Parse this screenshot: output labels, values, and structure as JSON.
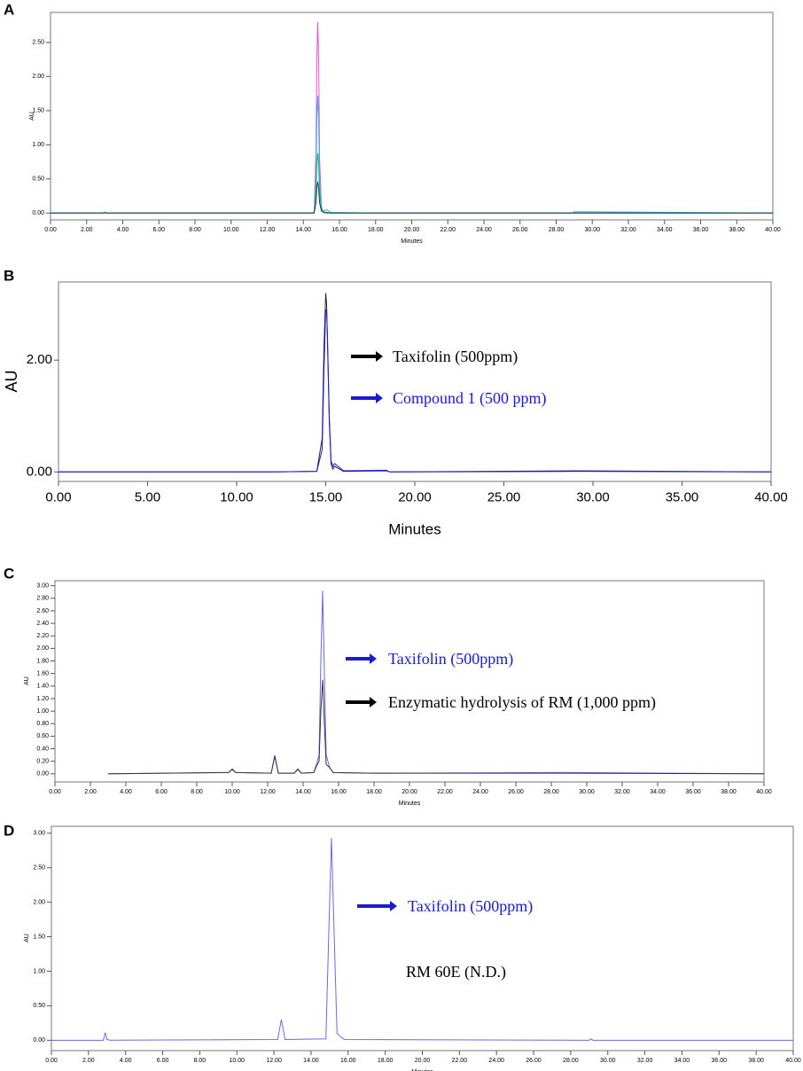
{
  "chart_data": [
    {
      "type": "line",
      "panel_label": "A",
      "xlabel": "Minutes",
      "ylabel": "AU",
      "xlim": [
        0,
        40
      ],
      "ylim": [
        -0.1,
        2.94
      ],
      "xticks": [
        {
          "value": 0,
          "label": "0.00"
        },
        {
          "value": 2,
          "label": "2.00"
        },
        {
          "value": 4,
          "label": "4.00"
        },
        {
          "value": 6,
          "label": "6.00"
        },
        {
          "value": 8,
          "label": "8.00"
        },
        {
          "value": 10,
          "label": "10.00"
        },
        {
          "value": 12,
          "label": "12.00"
        },
        {
          "value": 14,
          "label": "14.00"
        },
        {
          "value": 16,
          "label": "16.00"
        },
        {
          "value": 18,
          "label": "18.00"
        },
        {
          "value": 20,
          "label": "20.00"
        },
        {
          "value": 22,
          "label": "22.00"
        },
        {
          "value": 24,
          "label": "24.00"
        },
        {
          "value": 26,
          "label": "26.00"
        },
        {
          "value": 28,
          "label": "28.00"
        },
        {
          "value": 30,
          "label": "30.00"
        },
        {
          "value": 32,
          "label": "32.00"
        },
        {
          "value": 34,
          "label": "34.00"
        },
        {
          "value": 36,
          "label": "36.00"
        },
        {
          "value": 38,
          "label": "38.00"
        },
        {
          "value": 40,
          "label": "40.00"
        }
      ],
      "yticks": [
        {
          "value": 0,
          "label": "0.00"
        },
        {
          "value": 0.5,
          "label": "0.50"
        },
        {
          "value": 1,
          "label": "1.00"
        },
        {
          "value": 1.5,
          "label": "1.50"
        },
        {
          "value": 2,
          "label": "2.00"
        },
        {
          "value": 2.5,
          "label": "2.50"
        }
      ],
      "x": [
        0,
        2.9,
        3.0,
        3.1,
        10,
        14.5,
        14.6,
        14.7,
        14.75,
        14.8,
        14.85,
        14.9,
        15.0,
        15.1,
        15.3,
        15.5,
        18,
        28.9,
        29.0,
        40
      ],
      "series": [
        {
          "color": "#e64fd8",
          "values": [
            0,
            0,
            0,
            0,
            0,
            0,
            0.02,
            0.9,
            2.3,
            2.8,
            2.2,
            0.8,
            0.1,
            0.02,
            0.01,
            0,
            0,
            0,
            0,
            0
          ]
        },
        {
          "color": "#35b6e0",
          "values": [
            0,
            0,
            0,
            0,
            0,
            0,
            0.01,
            0.5,
            1.4,
            1.72,
            1.3,
            0.5,
            0.08,
            0.03,
            0.05,
            0.01,
            0,
            0,
            0.02,
            0
          ]
        },
        {
          "color": "#1fb07a",
          "values": [
            0,
            0,
            0,
            0,
            0,
            0,
            0.01,
            0.3,
            0.7,
            0.88,
            0.7,
            0.3,
            0.05,
            0.01,
            0.01,
            0,
            0,
            0,
            0,
            0
          ]
        },
        {
          "color": "#2b3a55",
          "values": [
            0,
            0,
            0.01,
            0,
            0,
            0,
            0,
            0.15,
            0.38,
            0.46,
            0.35,
            0.15,
            0.03,
            0.01,
            0,
            0,
            0,
            0,
            0,
            0
          ]
        }
      ],
      "annotations": []
    },
    {
      "type": "line",
      "panel_label": "B",
      "xlabel": "Minutes",
      "ylabel": "AU",
      "xlim": [
        0,
        40
      ],
      "ylim": [
        -0.17,
        3.4
      ],
      "xticks": [
        {
          "value": 0,
          "label": "0.00"
        },
        {
          "value": 5,
          "label": "5.00"
        },
        {
          "value": 10,
          "label": "10.00"
        },
        {
          "value": 15,
          "label": "15.00"
        },
        {
          "value": 20,
          "label": "20.00"
        },
        {
          "value": 25,
          "label": "25.00"
        },
        {
          "value": 30,
          "label": "30.00"
        },
        {
          "value": 35,
          "label": "35.00"
        },
        {
          "value": 40,
          "label": "40.00"
        }
      ],
      "yticks": [
        {
          "value": 0,
          "label": "0.00"
        },
        {
          "value": 2,
          "label": "2.00"
        }
      ],
      "x": [
        0,
        12,
        14.5,
        14.8,
        14.9,
        15.0,
        15.05,
        15.1,
        15.2,
        15.3,
        15.4,
        15.5,
        16,
        18.4,
        18.6,
        29,
        40
      ],
      "series": [
        {
          "color": "#222222",
          "values": [
            0,
            0,
            0.01,
            0.6,
            2.2,
            3.2,
            3.0,
            2.3,
            0.9,
            0.15,
            0.05,
            0.1,
            0.01,
            0.02,
            0,
            0.01,
            0
          ]
        },
        {
          "color": "#1a1ad6",
          "values": [
            0,
            0,
            0.01,
            0.4,
            1.8,
            2.9,
            2.9,
            2.4,
            1.0,
            0.2,
            0.1,
            0.15,
            0.02,
            0.03,
            0,
            0.02,
            0
          ]
        }
      ],
      "annotations": [
        {
          "text": "Taxifolin (500ppm)",
          "color": "#000000"
        },
        {
          "text": "Compound 1 (500 ppm)",
          "color": "#1a1ad6"
        }
      ]
    },
    {
      "type": "line",
      "panel_label": "C",
      "xlabel": "Minutes",
      "ylabel": "AU",
      "xlim": [
        0,
        40
      ],
      "ylim": [
        -0.13,
        3.08
      ],
      "xticks": [
        {
          "value": 0,
          "label": "0.00"
        },
        {
          "value": 2,
          "label": "2.00"
        },
        {
          "value": 4,
          "label": "4.00"
        },
        {
          "value": 6,
          "label": "6.00"
        },
        {
          "value": 8,
          "label": "8.00"
        },
        {
          "value": 10,
          "label": "10.00"
        },
        {
          "value": 12,
          "label": "12.00"
        },
        {
          "value": 14,
          "label": "14.00"
        },
        {
          "value": 16,
          "label": "16.00"
        },
        {
          "value": 18,
          "label": "18.00"
        },
        {
          "value": 20,
          "label": "20.00"
        },
        {
          "value": 22,
          "label": "22.00"
        },
        {
          "value": 24,
          "label": "24.00"
        },
        {
          "value": 26,
          "label": "26.00"
        },
        {
          "value": 28,
          "label": "28.00"
        },
        {
          "value": 30,
          "label": "30.00"
        },
        {
          "value": 32,
          "label": "32.00"
        },
        {
          "value": 34,
          "label": "34.00"
        },
        {
          "value": 36,
          "label": "36.00"
        },
        {
          "value": 38,
          "label": "38.00"
        },
        {
          "value": 40,
          "label": "40.00"
        }
      ],
      "yticks": [
        {
          "value": 0,
          "label": "0.00"
        },
        {
          "value": 0.2,
          "label": "0.20"
        },
        {
          "value": 0.4,
          "label": "0.40"
        },
        {
          "value": 0.6,
          "label": "0.60"
        },
        {
          "value": 0.8,
          "label": "0.80"
        },
        {
          "value": 1,
          "label": "1.00"
        },
        {
          "value": 1.2,
          "label": "1.20"
        },
        {
          "value": 1.4,
          "label": "1.40"
        },
        {
          "value": 1.6,
          "label": "1.60"
        },
        {
          "value": 1.8,
          "label": "1.80"
        },
        {
          "value": 2,
          "label": "2.00"
        },
        {
          "value": 2.2,
          "label": "2.20"
        },
        {
          "value": 2.4,
          "label": "2.40"
        },
        {
          "value": 2.6,
          "label": "2.60"
        },
        {
          "value": 2.8,
          "label": "2.80"
        },
        {
          "value": 3,
          "label": "3.00"
        }
      ],
      "x": [
        3,
        9.8,
        10,
        10.2,
        12.2,
        12.4,
        12.6,
        13.5,
        13.7,
        13.9,
        14.6,
        14.75,
        14.9,
        15.0,
        15.1,
        15.2,
        15.3,
        15.5,
        15.7,
        18,
        29,
        40
      ],
      "series": [
        {
          "color": "#6666dd",
          "values": [
            0,
            0.02,
            0.08,
            0.02,
            0.01,
            0.3,
            0.01,
            0.01,
            0.08,
            0.01,
            0.02,
            0.15,
            0.3,
            1.8,
            2.92,
            1.6,
            0.3,
            0.1,
            0.02,
            0.01,
            0.02,
            0
          ]
        },
        {
          "color": "#333344",
          "values": [
            0,
            0.02,
            0.07,
            0.02,
            0.01,
            0.28,
            0.01,
            0.01,
            0.07,
            0.01,
            0.02,
            0.12,
            0.2,
            1.0,
            1.5,
            0.8,
            0.15,
            0.1,
            0.02,
            0.01,
            0.01,
            0
          ]
        }
      ],
      "annotations": [
        {
          "text": "Taxifolin (500ppm)",
          "color": "#1a1ad6"
        },
        {
          "text": "Enzymatic hydrolysis of RM (1,000 ppm)",
          "color": "#000000"
        }
      ]
    },
    {
      "type": "line",
      "panel_label": "D",
      "xlabel": "Minutes",
      "ylabel": "AU",
      "xlim": [
        0,
        40
      ],
      "ylim": [
        -0.15,
        3.1
      ],
      "xticks": [
        {
          "value": 0,
          "label": "0.00"
        },
        {
          "value": 2,
          "label": "2.00"
        },
        {
          "value": 4,
          "label": "4.00"
        },
        {
          "value": 6,
          "label": "6.00"
        },
        {
          "value": 8,
          "label": "8.00"
        },
        {
          "value": 10,
          "label": "10.00"
        },
        {
          "value": 12,
          "label": "12.00"
        },
        {
          "value": 14,
          "label": "14.00"
        },
        {
          "value": 16,
          "label": "16.00"
        },
        {
          "value": 18,
          "label": "18.00"
        },
        {
          "value": 20,
          "label": "20.00"
        },
        {
          "value": 22,
          "label": "22.00"
        },
        {
          "value": 24,
          "label": "24.00"
        },
        {
          "value": 26,
          "label": "26.00"
        },
        {
          "value": 28,
          "label": "28.00"
        },
        {
          "value": 30,
          "label": "30.00"
        },
        {
          "value": 32,
          "label": "32.00"
        },
        {
          "value": 34,
          "label": "34.00"
        },
        {
          "value": 36,
          "label": "36.00"
        },
        {
          "value": 38,
          "label": "38.00"
        },
        {
          "value": 40,
          "label": "40.00"
        }
      ],
      "yticks": [
        {
          "value": 0,
          "label": "0.00"
        },
        {
          "value": 0.5,
          "label": "0.50"
        },
        {
          "value": 1,
          "label": "1.00"
        },
        {
          "value": 1.5,
          "label": "1.50"
        },
        {
          "value": 2,
          "label": "2.00"
        },
        {
          "value": 2.5,
          "label": "2.50"
        },
        {
          "value": 3,
          "label": "3.00"
        }
      ],
      "x": [
        0,
        2.8,
        2.9,
        3.0,
        3.2,
        12.2,
        12.4,
        12.6,
        14.8,
        14.95,
        15.1,
        15.25,
        15.4,
        15.6,
        15.8,
        29,
        29.1,
        29.2,
        40
      ],
      "series": [
        {
          "color": "#6a6ae0",
          "values": [
            0,
            0,
            0.11,
            0.01,
            0,
            0.01,
            0.3,
            0.01,
            0.02,
            1.5,
            2.93,
            1.5,
            0.1,
            0.05,
            0.01,
            0,
            0.02,
            0,
            0
          ]
        }
      ],
      "annotations": [
        {
          "text": "Taxifolin (500ppm)",
          "color": "#1a1ad6"
        },
        {
          "text": "RM 60E (N.D.)",
          "color": "#000000"
        }
      ]
    }
  ]
}
